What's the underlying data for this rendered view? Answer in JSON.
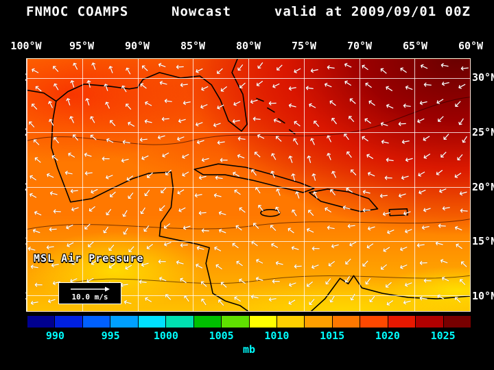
{
  "title": {
    "model": "FNMOC COAMPS",
    "product": "Nowcast",
    "valid": "valid at 2009/09/01 00Z"
  },
  "map": {
    "field_label": "MSL Air Pressure",
    "wind_scale_label": "10.0 m/s",
    "lon_labels": [
      "100°W",
      "95°W",
      "90°W",
      "85°W",
      "80°W",
      "75°W",
      "70°W",
      "65°W",
      "60°W"
    ],
    "lat_labels": [
      "30°N",
      "25°N",
      "20°N",
      "15°N",
      "10°N"
    ],
    "lat_positions_pct": [
      7.7,
      29.2,
      50.7,
      72.2,
      93.7
    ],
    "wind_color": "#ffffff",
    "grid_color": "rgba(255,255,255,0.8)"
  },
  "colorbar": {
    "units": "mb",
    "tick_labels": [
      "990",
      "995",
      "1000",
      "1005",
      "1010",
      "1015",
      "1020",
      "1025"
    ],
    "tick_color": "#00ffff",
    "segment_colors": [
      "#000090",
      "#0020e0",
      "#0060ff",
      "#00a0ff",
      "#00e0ff",
      "#00e0b0",
      "#00c000",
      "#60e000",
      "#ffff00",
      "#ffd000",
      "#ffa000",
      "#ff7800",
      "#ff4800",
      "#e81800",
      "#b00000",
      "#780000"
    ],
    "value_min": 987.5,
    "value_max": 1027.5
  },
  "chart_data": {
    "type": "heatmap",
    "title": "MSL Air Pressure Nowcast valid at 2009/09/01 00Z",
    "xlabel": "Longitude (100°W to 60°W)",
    "ylabel": "Latitude (10°N to 30°N)",
    "colorbar_units": "mb",
    "colorbar_ticks": [
      990,
      995,
      1000,
      1005,
      1010,
      1015,
      1020,
      1025
    ],
    "field_summary": "High pressure (1020-1025 mb, dark red) over northeast Atlantic corner; ~1012-1016 mb (orange/red) across Gulf of Mexico and Caribbean; lower pressure (~1005-1010 mb, yellow) along southern edge near Central/South America; white wind vectors show predominantly easterly trade flow; reference vector 10.0 m/s"
  }
}
